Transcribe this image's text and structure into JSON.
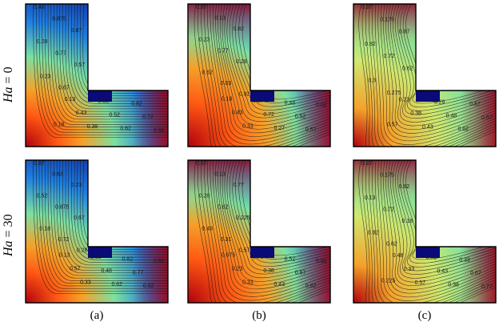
{
  "rows": [
    {
      "id": "ha0",
      "prefix": "Ha",
      "eq": " = 0"
    },
    {
      "id": "ha30",
      "prefix": "Ha",
      "eq": " = 30"
    }
  ],
  "captions": [
    "(a)",
    "(b)",
    "(c)"
  ],
  "colors": {
    "hot": "#b0000d",
    "warm": "#f4a22a",
    "mid": "#7ee0a0",
    "cool": "#1f7fe0",
    "cold": "#0b0f8c",
    "block": "#0a0a78"
  },
  "panels": [
    {
      "id": "r0c0",
      "labels": [
        "0.48",
        "0.875",
        "0.87",
        "0.28",
        "0.77",
        "0.57",
        "0.23",
        "0.67",
        "0.18",
        "0.13",
        "0.43",
        "0.38",
        "0.33",
        "0.52",
        "0.62",
        "0.82",
        "0.72",
        "0.92"
      ]
    },
    {
      "id": "r0c1",
      "labels": [
        "0.87",
        "0.13",
        "0.82",
        "0.23",
        "0.77",
        "0.28",
        "0.62",
        "0.03",
        "0.92",
        "0.18",
        "0.43",
        "0.33",
        "0.67",
        "0.72",
        "0.27",
        "0.48",
        "0.52",
        "0.57",
        "0.02"
      ]
    },
    {
      "id": "r0c2",
      "labels": [
        "0.87",
        "0.175",
        "0.87",
        "0.82",
        "0.72",
        "0.62",
        "0.3",
        "0.275",
        "0.57",
        "0.23",
        "0.38",
        "0.43",
        "0.28",
        "0.48",
        "0.62",
        "0.67",
        "0.57"
      ]
    },
    {
      "id": "r1c0",
      "labels": [
        "0.87",
        "0.63",
        "0.23",
        "0.52",
        "0.875",
        "0.67",
        "0.18",
        "0.72",
        "0.28",
        "0.13",
        "0.57",
        "0.33",
        "0.38",
        "0.48",
        "0.62",
        "0.82",
        "0.77",
        "0.92",
        "0.62"
      ]
    },
    {
      "id": "r1c1",
      "labels": [
        "0.87",
        "0.13",
        "0.77",
        "0.28",
        "0.62",
        "0.225",
        "0.48",
        "0.31",
        "0.57",
        "0.075",
        "0.23",
        "0.33",
        "0.72",
        "0.38",
        "0.43",
        "0.52",
        "0.67",
        "0.82",
        "0.92"
      ]
    },
    {
      "id": "r1c2",
      "labels": [
        "0.87",
        "0.175",
        "0.82",
        "0.13",
        "0.72",
        "0.18",
        "0.82",
        "0.62",
        "0.225",
        "0.48",
        "0.33",
        "0.57",
        "0.82",
        "0.43",
        "0.38",
        "0.33",
        "0.67",
        "0.77"
      ]
    }
  ]
}
